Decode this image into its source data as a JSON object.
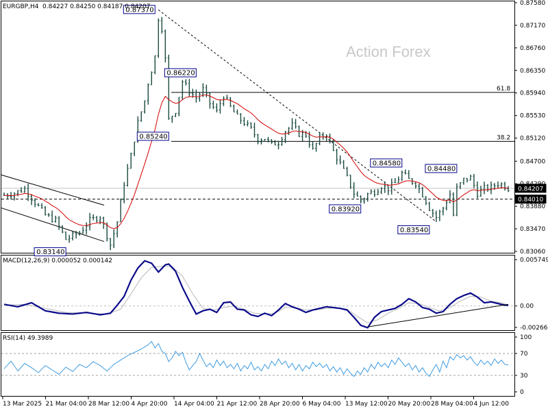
{
  "colors": {
    "background": "#ffffff",
    "frame": "#000000",
    "bars": "#1a4a40",
    "ma": "#d40000",
    "macd_line": "#0a0a8a",
    "macd_signal": "#b8b8b8",
    "rsi": "#3d9be0",
    "level": "#000000",
    "label_border": "#00008b",
    "current_price_bg": "#000000",
    "current_price_fg": "#ffffff",
    "watermark": "#c8c8c8"
  },
  "header": {
    "symbol": "EURGBP,H4",
    "ohlc": "0.84227 0.84250 0.84187 0.84207"
  },
  "watermark": "Action Forex",
  "chart_data": [
    {
      "type": "ohlc",
      "ylim": [
        0.8306,
        0.8758
      ],
      "y_ticks": [
        "0.87580",
        "0.87170",
        "0.86760",
        "0.86350",
        "0.85940",
        "0.85530",
        "0.85120",
        "0.84700",
        "0.84290",
        "0.83880",
        "0.83470",
        "0.83060"
      ],
      "x_ticks": [
        "13 Mar 2025",
        "21 Mar 04:00",
        "28 Mar 12:00",
        "4 Apr 20:00",
        "14 Apr 04:00",
        "21 Apr 12:00",
        "28 Apr 20:00",
        "6 May 04:00",
        "13 May 12:00",
        "20 May 20:00",
        "28 May 04:00",
        "4 Jun 12:00"
      ],
      "current_price": "0.84207",
      "support_level": "0.84010",
      "annotations": [
        {
          "text": "0.87370",
          "price": 0.8737,
          "bar": 44
        },
        {
          "text": "0.86220",
          "price": 0.8622,
          "bar": 56
        },
        {
          "text": "0.85240",
          "price": 0.8524,
          "bar": 48
        },
        {
          "text": "0.84580",
          "price": 0.8458,
          "bar": 116
        },
        {
          "text": "0.83920",
          "price": 0.8392,
          "bar": 104
        },
        {
          "text": "0.84480",
          "price": 0.8448,
          "bar": 132
        },
        {
          "text": "0.83540",
          "price": 0.8354,
          "bar": 124
        },
        {
          "text": "0.83140",
          "price": 0.8314,
          "bar": 18
        }
      ],
      "fib_levels": [
        {
          "label": "61.8",
          "price": 0.8595
        },
        {
          "label": "38.2",
          "price": 0.8506
        }
      ],
      "close_path": [
        [
          0,
          0.8408
        ],
        [
          3,
          0.8412
        ],
        [
          6,
          0.842
        ],
        [
          9,
          0.8395
        ],
        [
          12,
          0.8372
        ],
        [
          15,
          0.8362
        ],
        [
          18,
          0.8328
        ],
        [
          22,
          0.834
        ],
        [
          25,
          0.8362
        ],
        [
          28,
          0.837
        ],
        [
          31,
          0.8318
        ],
        [
          33,
          0.836
        ],
        [
          35,
          0.843
        ],
        [
          37,
          0.848
        ],
        [
          39,
          0.854
        ],
        [
          41,
          0.858
        ],
        [
          42,
          0.8612
        ],
        [
          44,
          0.866
        ],
        [
          45,
          0.873
        ],
        [
          46,
          0.8712
        ],
        [
          47,
          0.8655
        ],
        [
          48,
          0.8545
        ],
        [
          50,
          0.8562
        ],
        [
          52,
          0.8615
        ],
        [
          54,
          0.8598
        ],
        [
          56,
          0.8585
        ],
        [
          58,
          0.86
        ],
        [
          60,
          0.8575
        ],
        [
          62,
          0.856
        ],
        [
          64,
          0.859
        ],
        [
          66,
          0.8568
        ],
        [
          68,
          0.855
        ],
        [
          70,
          0.854
        ],
        [
          72,
          0.8528
        ],
        [
          74,
          0.851
        ],
        [
          76,
          0.8512
        ],
        [
          78,
          0.85
        ],
        [
          80,
          0.8505
        ],
        [
          82,
          0.8525
        ],
        [
          84,
          0.8535
        ],
        [
          86,
          0.852
        ],
        [
          88,
          0.8518
        ],
        [
          90,
          0.849
        ],
        [
          92,
          0.8512
        ],
        [
          94,
          0.852
        ],
        [
          96,
          0.8488
        ],
        [
          98,
          0.8465
        ],
        [
          100,
          0.844
        ],
        [
          102,
          0.8412
        ],
        [
          104,
          0.8398
        ],
        [
          106,
          0.841
        ],
        [
          108,
          0.8415
        ],
        [
          110,
          0.8425
        ],
        [
          112,
          0.842
        ],
        [
          114,
          0.843
        ],
        [
          116,
          0.8448
        ],
        [
          118,
          0.8436
        ],
        [
          120,
          0.843
        ],
        [
          122,
          0.841
        ],
        [
          124,
          0.8385
        ],
        [
          126,
          0.8368
        ],
        [
          128,
          0.8385
        ],
        [
          130,
          0.841
        ],
        [
          131,
          0.8372
        ],
        [
          132,
          0.842
        ],
        [
          134,
          0.8436
        ],
        [
          136,
          0.844
        ],
        [
          138,
          0.8412
        ],
        [
          140,
          0.842
        ],
        [
          142,
          0.8422
        ],
        [
          144,
          0.843
        ],
        [
          146,
          0.8425
        ],
        [
          147,
          0.8421
        ]
      ]
    },
    {
      "type": "line",
      "title": "MACD(12,26,9) 0.000052 0.000142",
      "ylim": [
        -0.002663,
        0.005749
      ],
      "y_ticks": [
        "0.005749",
        "0.00",
        "-0.002663"
      ],
      "macd_path": [
        [
          0,
          0.0002
        ],
        [
          4,
          -0.0001
        ],
        [
          8,
          0.0004
        ],
        [
          12,
          -0.0006
        ],
        [
          16,
          -0.0009
        ],
        [
          20,
          -0.001
        ],
        [
          24,
          -0.0008
        ],
        [
          28,
          -0.0011
        ],
        [
          31,
          -0.0009
        ],
        [
          33,
          0.0001
        ],
        [
          35,
          0.0012
        ],
        [
          37,
          0.0032
        ],
        [
          39,
          0.0047
        ],
        [
          41,
          0.0056
        ],
        [
          43,
          0.0053
        ],
        [
          45,
          0.0042
        ],
        [
          47,
          0.0051
        ],
        [
          48,
          0.0052
        ],
        [
          50,
          0.0043
        ],
        [
          52,
          0.0023
        ],
        [
          54,
          0.0006
        ],
        [
          56,
          -0.001
        ],
        [
          58,
          -0.0006
        ],
        [
          60,
          -0.0004
        ],
        [
          62,
          -0.0008
        ],
        [
          64,
          0.0004
        ],
        [
          66,
          0.0005
        ],
        [
          68,
          -0.0004
        ],
        [
          70,
          -0.0005
        ],
        [
          72,
          -0.0011
        ],
        [
          74,
          -0.0013
        ],
        [
          76,
          -0.0009
        ],
        [
          78,
          -0.0012
        ],
        [
          80,
          -0.0005
        ],
        [
          82,
          0.0003
        ],
        [
          84,
          -0.0001
        ],
        [
          86,
          -0.0004
        ],
        [
          88,
          -0.0008
        ],
        [
          90,
          -0.0005
        ],
        [
          92,
          -0.0003
        ],
        [
          94,
          -0.0001
        ],
        [
          96,
          -0.0002
        ],
        [
          98,
          -0.0003
        ],
        [
          100,
          -0.0005
        ],
        [
          102,
          -0.0014
        ],
        [
          104,
          -0.0024
        ],
        [
          106,
          -0.0027
        ],
        [
          108,
          -0.0014
        ],
        [
          110,
          -0.0007
        ],
        [
          112,
          -0.0005
        ],
        [
          114,
          -0.0003
        ],
        [
          116,
          0.0002
        ],
        [
          118,
          0.0009
        ],
        [
          120,
          0.0005
        ],
        [
          122,
          -0.0002
        ],
        [
          124,
          -0.0004
        ],
        [
          126,
          -0.0009
        ],
        [
          128,
          -0.0007
        ],
        [
          130,
          0.0002
        ],
        [
          132,
          0.0009
        ],
        [
          134,
          0.0013
        ],
        [
          136,
          0.0016
        ],
        [
          138,
          0.0011
        ],
        [
          140,
          0.0004
        ],
        [
          142,
          0.0005
        ],
        [
          144,
          0.0003
        ],
        [
          146,
          0.0001
        ],
        [
          147,
          0.0001
        ]
      ],
      "signal_path": [
        [
          0,
          0.0001
        ],
        [
          6,
          0.0002
        ],
        [
          12,
          -0.0003
        ],
        [
          18,
          -0.0008
        ],
        [
          24,
          -0.0009
        ],
        [
          30,
          -0.001
        ],
        [
          34,
          -0.0004
        ],
        [
          37,
          0.0015
        ],
        [
          40,
          0.0035
        ],
        [
          43,
          0.0048
        ],
        [
          46,
          0.0049
        ],
        [
          49,
          0.0049
        ],
        [
          52,
          0.0037
        ],
        [
          55,
          0.0015
        ],
        [
          58,
          -0.0003
        ],
        [
          61,
          -0.0005
        ],
        [
          64,
          -0.0002
        ],
        [
          67,
          0.0
        ],
        [
          70,
          -0.0004
        ],
        [
          73,
          -0.0009
        ],
        [
          76,
          -0.001
        ],
        [
          79,
          -0.0009
        ],
        [
          82,
          -0.0002
        ],
        [
          85,
          -0.0002
        ],
        [
          88,
          -0.0005
        ],
        [
          91,
          -0.0005
        ],
        [
          94,
          -0.0003
        ],
        [
          97,
          -0.0002
        ],
        [
          100,
          -0.0004
        ],
        [
          103,
          -0.0013
        ],
        [
          106,
          -0.0021
        ],
        [
          109,
          -0.0017
        ],
        [
          112,
          -0.0009
        ],
        [
          115,
          -0.0003
        ],
        [
          118,
          0.0004
        ],
        [
          121,
          0.0003
        ],
        [
          124,
          -0.0002
        ],
        [
          127,
          -0.0006
        ],
        [
          130,
          -0.0002
        ],
        [
          133,
          0.0006
        ],
        [
          136,
          0.0012
        ],
        [
          139,
          0.0011
        ],
        [
          142,
          0.0006
        ],
        [
          145,
          0.0004
        ],
        [
          147,
          0.0001
        ]
      ],
      "trendline": [
        [
          106,
          -0.0026
        ],
        [
          147,
          0.0002
        ]
      ]
    },
    {
      "type": "line",
      "title": "RSI(14) 49.3989",
      "ylim": [
        0,
        100
      ],
      "y_ticks": [
        "100",
        "70",
        "30",
        "0"
      ],
      "levels": [
        70,
        30
      ],
      "rsi_path": [
        [
          0,
          42
        ],
        [
          2,
          56
        ],
        [
          4,
          38
        ],
        [
          6,
          52
        ],
        [
          8,
          44
        ],
        [
          10,
          35
        ],
        [
          12,
          48
        ],
        [
          14,
          40
        ],
        [
          16,
          32
        ],
        [
          18,
          45
        ],
        [
          20,
          37
        ],
        [
          22,
          50
        ],
        [
          24,
          44
        ],
        [
          26,
          55
        ],
        [
          28,
          48
        ],
        [
          30,
          38
        ],
        [
          32,
          50
        ],
        [
          34,
          58
        ],
        [
          36,
          66
        ],
        [
          38,
          72
        ],
        [
          40,
          78
        ],
        [
          42,
          86
        ],
        [
          43,
          92
        ],
        [
          44,
          80
        ],
        [
          45,
          88
        ],
        [
          46,
          74
        ],
        [
          47,
          70
        ],
        [
          48,
          55
        ],
        [
          49,
          62
        ],
        [
          50,
          74
        ],
        [
          51,
          66
        ],
        [
          52,
          72
        ],
        [
          53,
          54
        ],
        [
          54,
          40
        ],
        [
          55,
          48
        ],
        [
          56,
          55
        ],
        [
          57,
          70
        ],
        [
          58,
          58
        ],
        [
          59,
          46
        ],
        [
          60,
          52
        ],
        [
          61,
          44
        ],
        [
          62,
          58
        ],
        [
          63,
          48
        ],
        [
          64,
          56
        ],
        [
          65,
          44
        ],
        [
          66,
          50
        ],
        [
          67,
          42
        ],
        [
          68,
          52
        ],
        [
          69,
          38
        ],
        [
          70,
          48
        ],
        [
          71,
          42
        ],
        [
          72,
          54
        ],
        [
          73,
          40
        ],
        [
          74,
          46
        ],
        [
          75,
          38
        ],
        [
          76,
          50
        ],
        [
          77,
          42
        ],
        [
          78,
          56
        ],
        [
          79,
          48
        ],
        [
          80,
          60
        ],
        [
          81,
          50
        ],
        [
          82,
          56
        ],
        [
          83,
          44
        ],
        [
          84,
          52
        ],
        [
          85,
          40
        ],
        [
          86,
          50
        ],
        [
          87,
          38
        ],
        [
          88,
          48
        ],
        [
          89,
          42
        ],
        [
          90,
          54
        ],
        [
          91,
          46
        ],
        [
          92,
          52
        ],
        [
          93,
          44
        ],
        [
          94,
          50
        ],
        [
          95,
          38
        ],
        [
          96,
          46
        ],
        [
          97,
          36
        ],
        [
          98,
          44
        ],
        [
          99,
          32
        ],
        [
          100,
          42
        ],
        [
          101,
          34
        ],
        [
          102,
          28
        ],
        [
          103,
          38
        ],
        [
          104,
          32
        ],
        [
          105,
          44
        ],
        [
          106,
          36
        ],
        [
          107,
          50
        ],
        [
          108,
          42
        ],
        [
          109,
          54
        ],
        [
          110,
          46
        ],
        [
          111,
          52
        ],
        [
          112,
          44
        ],
        [
          113,
          58
        ],
        [
          114,
          50
        ],
        [
          115,
          62
        ],
        [
          116,
          54
        ],
        [
          117,
          46
        ],
        [
          118,
          52
        ],
        [
          119,
          40
        ],
        [
          120,
          48
        ],
        [
          121,
          36
        ],
        [
          122,
          44
        ],
        [
          123,
          34
        ],
        [
          124,
          28
        ],
        [
          125,
          40
        ],
        [
          126,
          50
        ],
        [
          127,
          36
        ],
        [
          128,
          56
        ],
        [
          129,
          44
        ],
        [
          130,
          64
        ],
        [
          131,
          58
        ],
        [
          132,
          68
        ],
        [
          133,
          62
        ],
        [
          134,
          66
        ],
        [
          135,
          58
        ],
        [
          136,
          64
        ],
        [
          137,
          54
        ],
        [
          138,
          48
        ],
        [
          139,
          58
        ],
        [
          140,
          50
        ],
        [
          141,
          56
        ],
        [
          142,
          48
        ],
        [
          143,
          60
        ],
        [
          144,
          52
        ],
        [
          145,
          58
        ],
        [
          146,
          50
        ],
        [
          147,
          49
        ]
      ]
    }
  ]
}
